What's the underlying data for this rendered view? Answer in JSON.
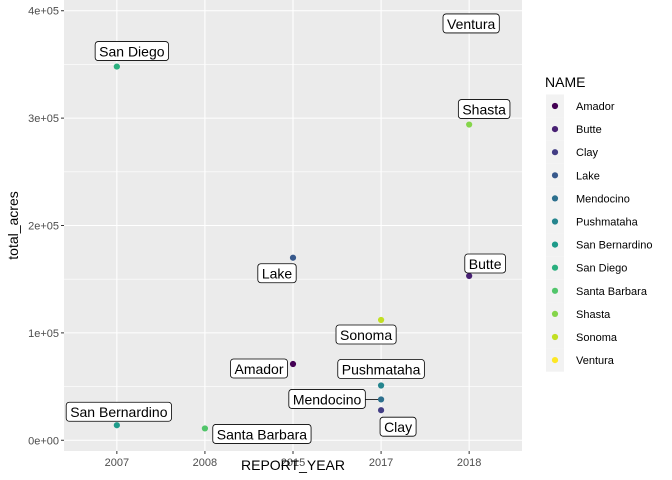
{
  "chart_data": {
    "type": "scatter",
    "title": "",
    "xlabel": "REPORT_YEAR",
    "ylabel": "total_acres",
    "x_categories": [
      "2007",
      "2008",
      "2015",
      "2017",
      "2018"
    ],
    "y_ticks": [
      0,
      100000,
      200000,
      300000,
      400000
    ],
    "y_tick_labels": [
      "0e+00",
      "1e+05",
      "2e+05",
      "3e+05",
      "4e+05"
    ],
    "ylim": [
      -10000,
      410000
    ],
    "grid": true,
    "legend": {
      "title": "NAME",
      "placement": "right",
      "entries": [
        "Amador",
        "Butte",
        "Clay",
        "Lake",
        "Mendocino",
        "Pushmataha",
        "San Bernardino",
        "San Diego",
        "Santa Barbara",
        "Shasta",
        "Sonoma",
        "Ventura"
      ]
    },
    "colors": {
      "Amador": "#440154",
      "Butte": "#482173",
      "Clay": "#433E85",
      "Lake": "#38598C",
      "Mendocino": "#2D708E",
      "Pushmataha": "#25858E",
      "San Bernardino": "#1E9B8A",
      "San Diego": "#2BB07F",
      "Santa Barbara": "#51C56A",
      "Shasta": "#85D54A",
      "Sonoma": "#C2DF23",
      "Ventura": "#FDE725"
    },
    "points": [
      {
        "name": "Amador",
        "x": "2015",
        "y": 71000
      },
      {
        "name": "Butte",
        "x": "2018",
        "y": 153000
      },
      {
        "name": "Clay",
        "x": "2017",
        "y": 28000
      },
      {
        "name": "Lake",
        "x": "2015",
        "y": 170000
      },
      {
        "name": "Mendocino",
        "x": "2017",
        "y": 38000
      },
      {
        "name": "Pushmataha",
        "x": "2017",
        "y": 51000
      },
      {
        "name": "San Bernardino",
        "x": "2007",
        "y": 14000
      },
      {
        "name": "San Diego",
        "x": "2007",
        "y": 348000
      },
      {
        "name": "Santa Barbara",
        "x": "2008",
        "y": 11000
      },
      {
        "name": "Shasta",
        "x": "2018",
        "y": 294000
      },
      {
        "name": "Sonoma",
        "x": "2017",
        "y": 112000
      },
      {
        "name": "Ventura",
        "x": "2018",
        "y": 384000
      }
    ]
  }
}
